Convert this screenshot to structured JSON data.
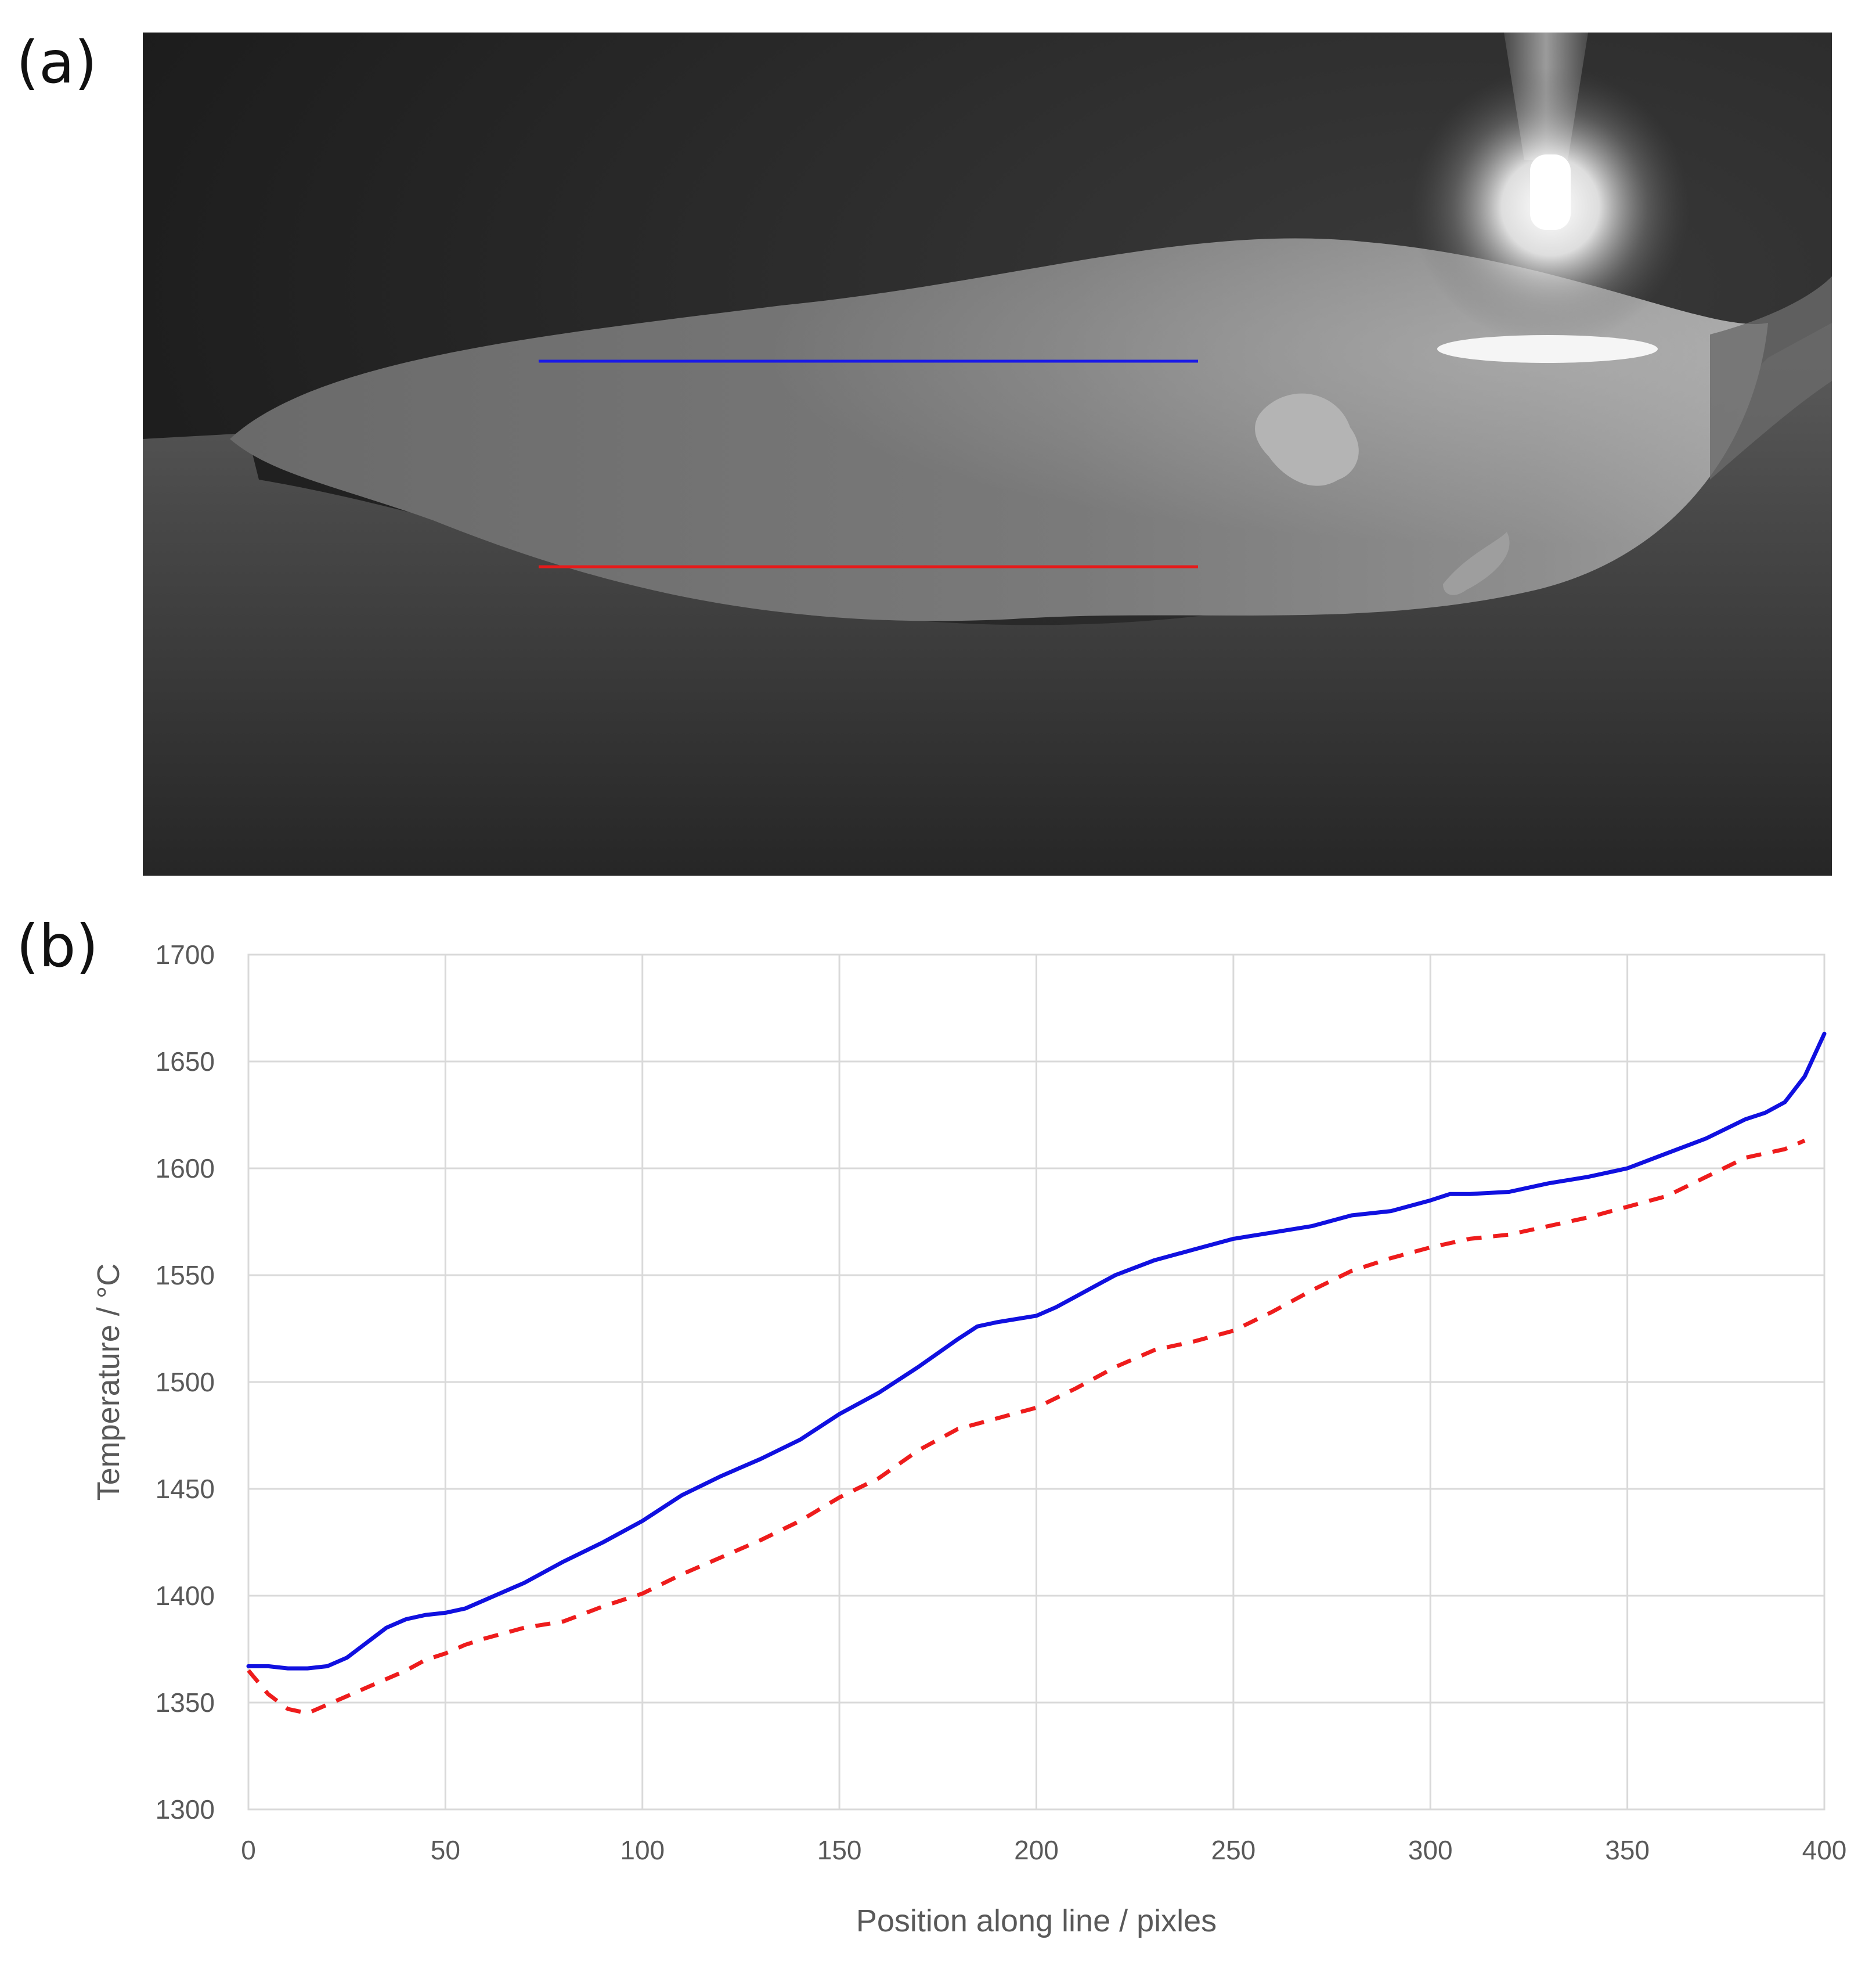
{
  "panels": {
    "a": {
      "label": "(a)"
    },
    "b": {
      "label": "(b)"
    }
  },
  "colors": {
    "line_top": "#1010e0",
    "line_bottom": "#ee1c1c",
    "grid": "#d9d9d9",
    "tick_text": "#595959"
  },
  "chart_data": {
    "type": "line",
    "title": "",
    "xlabel": "Position along line / pixles",
    "ylabel": "Temperature / °C",
    "xlim": [
      0,
      400
    ],
    "ylim": [
      1300,
      1700
    ],
    "xticks": [
      0,
      50,
      100,
      150,
      200,
      250,
      300,
      350,
      400
    ],
    "yticks": [
      1300,
      1350,
      1400,
      1450,
      1500,
      1550,
      1600,
      1650,
      1700
    ],
    "grid": true,
    "legend": "none",
    "series": [
      {
        "color": "#1010e0",
        "style": "solid",
        "x": [
          0,
          5,
          10,
          15,
          20,
          25,
          30,
          35,
          40,
          45,
          50,
          55,
          60,
          70,
          80,
          90,
          100,
          110,
          120,
          130,
          140,
          150,
          160,
          170,
          180,
          185,
          190,
          200,
          205,
          210,
          220,
          230,
          240,
          250,
          260,
          270,
          280,
          290,
          300,
          305,
          310,
          320,
          330,
          340,
          350,
          360,
          370,
          380,
          385,
          390,
          395,
          400
        ],
        "y": [
          1367,
          1367,
          1366,
          1366,
          1367,
          1371,
          1378,
          1385,
          1389,
          1391,
          1392,
          1394,
          1398,
          1406,
          1416,
          1425,
          1435,
          1447,
          1456,
          1464,
          1473,
          1485,
          1495,
          1507,
          1520,
          1526,
          1528,
          1531,
          1535,
          1540,
          1550,
          1557,
          1562,
          1567,
          1570,
          1573,
          1578,
          1580,
          1585,
          1588,
          1588,
          1589,
          1593,
          1596,
          1600,
          1607,
          1614,
          1623,
          1626,
          1631,
          1643,
          1663
        ]
      },
      {
        "color": "#ee1c1c",
        "style": "dashed",
        "x": [
          0,
          5,
          10,
          15,
          20,
          25,
          30,
          35,
          40,
          45,
          50,
          55,
          60,
          70,
          80,
          90,
          100,
          110,
          120,
          130,
          140,
          150,
          160,
          170,
          180,
          190,
          200,
          210,
          220,
          230,
          240,
          250,
          260,
          270,
          280,
          290,
          300,
          310,
          320,
          330,
          340,
          350,
          360,
          370,
          380,
          390,
          395
        ],
        "y": [
          1365,
          1354,
          1347,
          1345,
          1349,
          1353,
          1357,
          1361,
          1365,
          1370,
          1373,
          1377,
          1380,
          1385,
          1388,
          1395,
          1401,
          1410,
          1418,
          1426,
          1435,
          1446,
          1455,
          1468,
          1478,
          1483,
          1488,
          1497,
          1507,
          1515,
          1519,
          1524,
          1533,
          1543,
          1552,
          1558,
          1563,
          1567,
          1569,
          1573,
          1577,
          1582,
          1587,
          1596,
          1605,
          1609,
          1613
        ]
      }
    ]
  }
}
